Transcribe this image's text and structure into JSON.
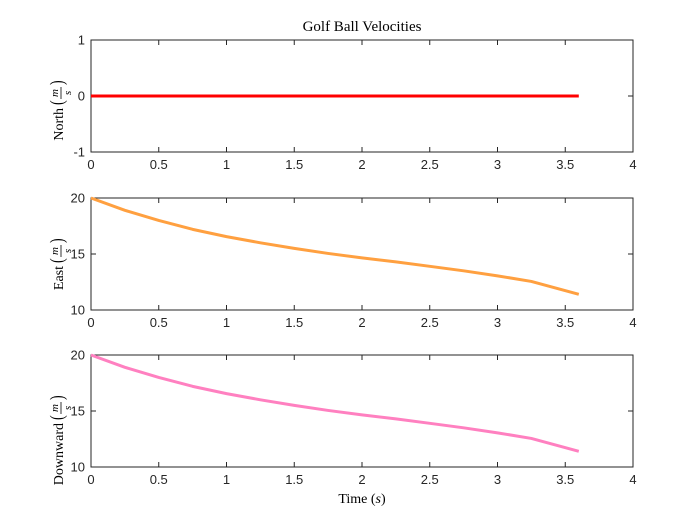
{
  "figure_title": "Golf Ball Velocities",
  "colors": {
    "north": "#ff0000",
    "east": "#ffa040",
    "downward": "#ff80c0"
  },
  "chart_data": [
    {
      "type": "line",
      "title": "Golf Ball Velocities",
      "ylabel_word": "North",
      "unit_num": "m",
      "unit_den": "s",
      "xlim": [
        0,
        4
      ],
      "ylim": [
        -1,
        1
      ],
      "xticks": [
        "0",
        "0.5",
        "1",
        "1.5",
        "2",
        "2.5",
        "3",
        "3.5",
        "4"
      ],
      "yticks": [
        "-1",
        "0",
        "1"
      ],
      "series": [
        {
          "x": [
            0,
            3.6
          ],
          "y": [
            0,
            0
          ]
        }
      ]
    },
    {
      "type": "line",
      "ylabel_word": "East",
      "unit_num": "m",
      "unit_den": "s",
      "xlim": [
        0,
        4
      ],
      "ylim": [
        10,
        20
      ],
      "xticks": [
        "0",
        "0.5",
        "1",
        "1.5",
        "2",
        "2.5",
        "3",
        "3.5",
        "4"
      ],
      "yticks": [
        "10",
        "15",
        "20"
      ],
      "series": [
        {
          "x": [
            0,
            0.25,
            0.5,
            0.75,
            1.0,
            1.25,
            1.5,
            1.75,
            2.0,
            2.25,
            2.5,
            2.75,
            3.0,
            3.25,
            3.6
          ],
          "y": [
            20.0,
            18.9,
            18.0,
            17.2,
            16.55,
            16.0,
            15.5,
            15.05,
            14.65,
            14.3,
            13.9,
            13.5,
            13.05,
            12.55,
            11.4
          ]
        }
      ]
    },
    {
      "type": "line",
      "ylabel_word": "Downward",
      "unit_num": "m",
      "unit_den": "s",
      "xlabel_word": "Time",
      "xlabel_unit": "s",
      "xlim": [
        0,
        4
      ],
      "ylim": [
        10,
        20
      ],
      "xticks": [
        "0",
        "0.5",
        "1",
        "1.5",
        "2",
        "2.5",
        "3",
        "3.5",
        "4"
      ],
      "yticks": [
        "10",
        "15",
        "20"
      ],
      "series": [
        {
          "x": [
            0,
            0.25,
            0.5,
            0.75,
            1.0,
            1.25,
            1.5,
            1.75,
            2.0,
            2.25,
            2.5,
            2.75,
            3.0,
            3.25,
            3.6
          ],
          "y": [
            20.0,
            18.9,
            18.0,
            17.2,
            16.55,
            16.0,
            15.5,
            15.05,
            14.65,
            14.3,
            13.9,
            13.5,
            13.05,
            12.55,
            11.4
          ]
        }
      ]
    }
  ]
}
